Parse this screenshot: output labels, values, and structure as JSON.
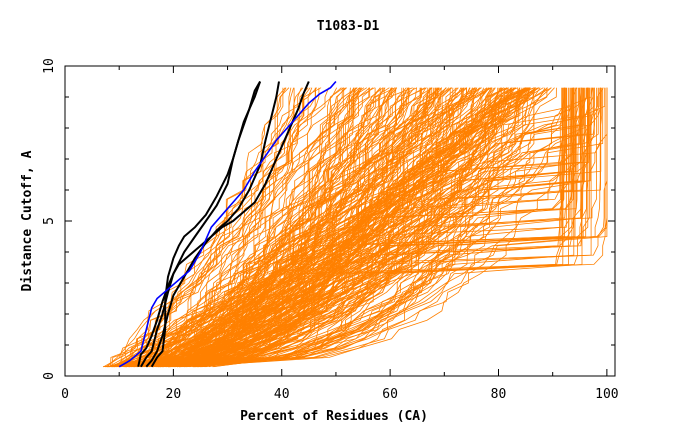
{
  "chart_data": {
    "type": "line",
    "title": "T1083-D1",
    "xlabel": "Percent of Residues (CA)",
    "ylabel": "Distance Cutoff, A",
    "xlim": [
      0,
      101.5
    ],
    "ylim": [
      0,
      10
    ],
    "x_ticks": [
      0,
      20,
      40,
      60,
      80,
      100
    ],
    "y_ticks": [
      0,
      5,
      10
    ],
    "x_minor_step": 10,
    "y_minor_step": 1,
    "grid": false,
    "colors": {
      "background_series": "#ff8000",
      "black_series": "#000000",
      "blue_series": "#0000ff"
    },
    "highlight_series": [
      {
        "name": "black-1",
        "color": "#000000",
        "points": [
          [
            13.5,
            0.3
          ],
          [
            14,
            0.7
          ],
          [
            15,
            0.9
          ],
          [
            16,
            1.3
          ],
          [
            17,
            1.8
          ],
          [
            18,
            2.4
          ],
          [
            19,
            2.9
          ],
          [
            20,
            3.3
          ],
          [
            21,
            3.6
          ],
          [
            23,
            3.9
          ],
          [
            25,
            4.2
          ],
          [
            27,
            4.5
          ],
          [
            29,
            4.8
          ],
          [
            31,
            5.0
          ],
          [
            33,
            5.3
          ],
          [
            35,
            5.6
          ],
          [
            37,
            6.2
          ],
          [
            39,
            7.0
          ],
          [
            41,
            7.8
          ],
          [
            43,
            8.6
          ],
          [
            44,
            9.1
          ],
          [
            45,
            9.5
          ]
        ]
      },
      {
        "name": "black-2",
        "color": "#000000",
        "points": [
          [
            16,
            0.3
          ],
          [
            17,
            0.6
          ],
          [
            18,
            0.8
          ],
          [
            18.5,
            1.5
          ],
          [
            18.5,
            2.5
          ],
          [
            19,
            3.2
          ],
          [
            20,
            3.8
          ],
          [
            21,
            4.2
          ],
          [
            22,
            4.5
          ],
          [
            24,
            4.8
          ],
          [
            26,
            5.2
          ],
          [
            28,
            5.8
          ],
          [
            30,
            6.5
          ],
          [
            31,
            7.0
          ],
          [
            32,
            7.6
          ],
          [
            33,
            8.1
          ],
          [
            34,
            8.6
          ],
          [
            35,
            9.0
          ],
          [
            36,
            9.5
          ]
        ]
      },
      {
        "name": "black-3",
        "color": "#000000",
        "points": [
          [
            14,
            0.3
          ],
          [
            15,
            0.6
          ],
          [
            16,
            0.8
          ],
          [
            17,
            1.5
          ],
          [
            18,
            2.0
          ],
          [
            19,
            2.7
          ],
          [
            20,
            3.3
          ],
          [
            22,
            4.0
          ],
          [
            24,
            4.5
          ],
          [
            26,
            5.0
          ],
          [
            28,
            5.5
          ],
          [
            30,
            6.2
          ],
          [
            31,
            7.0
          ],
          [
            32,
            7.6
          ],
          [
            33,
            8.2
          ],
          [
            34,
            8.6
          ],
          [
            35,
            9.2
          ],
          [
            36,
            9.5
          ]
        ]
      },
      {
        "name": "black-4",
        "color": "#000000",
        "points": [
          [
            15,
            0.3
          ],
          [
            16,
            0.5
          ],
          [
            17,
            0.8
          ],
          [
            18,
            1.3
          ],
          [
            19,
            2.0
          ],
          [
            20,
            2.6
          ],
          [
            22,
            3.2
          ],
          [
            24,
            3.8
          ],
          [
            26,
            4.3
          ],
          [
            28,
            4.7
          ],
          [
            30,
            5.0
          ],
          [
            32,
            5.4
          ],
          [
            34,
            6.0
          ],
          [
            36,
            6.8
          ],
          [
            37,
            7.6
          ],
          [
            38,
            8.3
          ],
          [
            39,
            9.0
          ],
          [
            39.5,
            9.5
          ]
        ]
      },
      {
        "name": "blue-1",
        "color": "#0000ff",
        "points": [
          [
            10,
            0.3
          ],
          [
            12,
            0.5
          ],
          [
            14,
            0.8
          ],
          [
            15,
            1.5
          ],
          [
            16,
            2.2
          ],
          [
            17,
            2.5
          ],
          [
            19,
            2.8
          ],
          [
            21,
            3.1
          ],
          [
            23,
            3.4
          ],
          [
            24,
            3.7
          ],
          [
            25,
            4.0
          ],
          [
            26,
            4.4
          ],
          [
            27,
            4.8
          ],
          [
            29,
            5.2
          ],
          [
            31,
            5.6
          ],
          [
            33,
            6.0
          ],
          [
            35,
            6.6
          ],
          [
            37,
            7.1
          ],
          [
            39,
            7.6
          ],
          [
            41,
            8.0
          ],
          [
            43,
            8.4
          ],
          [
            45,
            8.8
          ],
          [
            47,
            9.1
          ],
          [
            49,
            9.3
          ],
          [
            50,
            9.5
          ]
        ]
      }
    ],
    "background_series_generator": {
      "description": "approx. 300 decoy GDT curves (orange), distance cutoff 0.3 to 9.5 A vs percent residues",
      "count": 300,
      "seed": 1083,
      "y_min": 0.3,
      "y_max": 9.5,
      "y_step": 0.3,
      "start_x_range": [
        7,
        26
      ],
      "end_x_range": [
        35,
        100
      ]
    }
  }
}
